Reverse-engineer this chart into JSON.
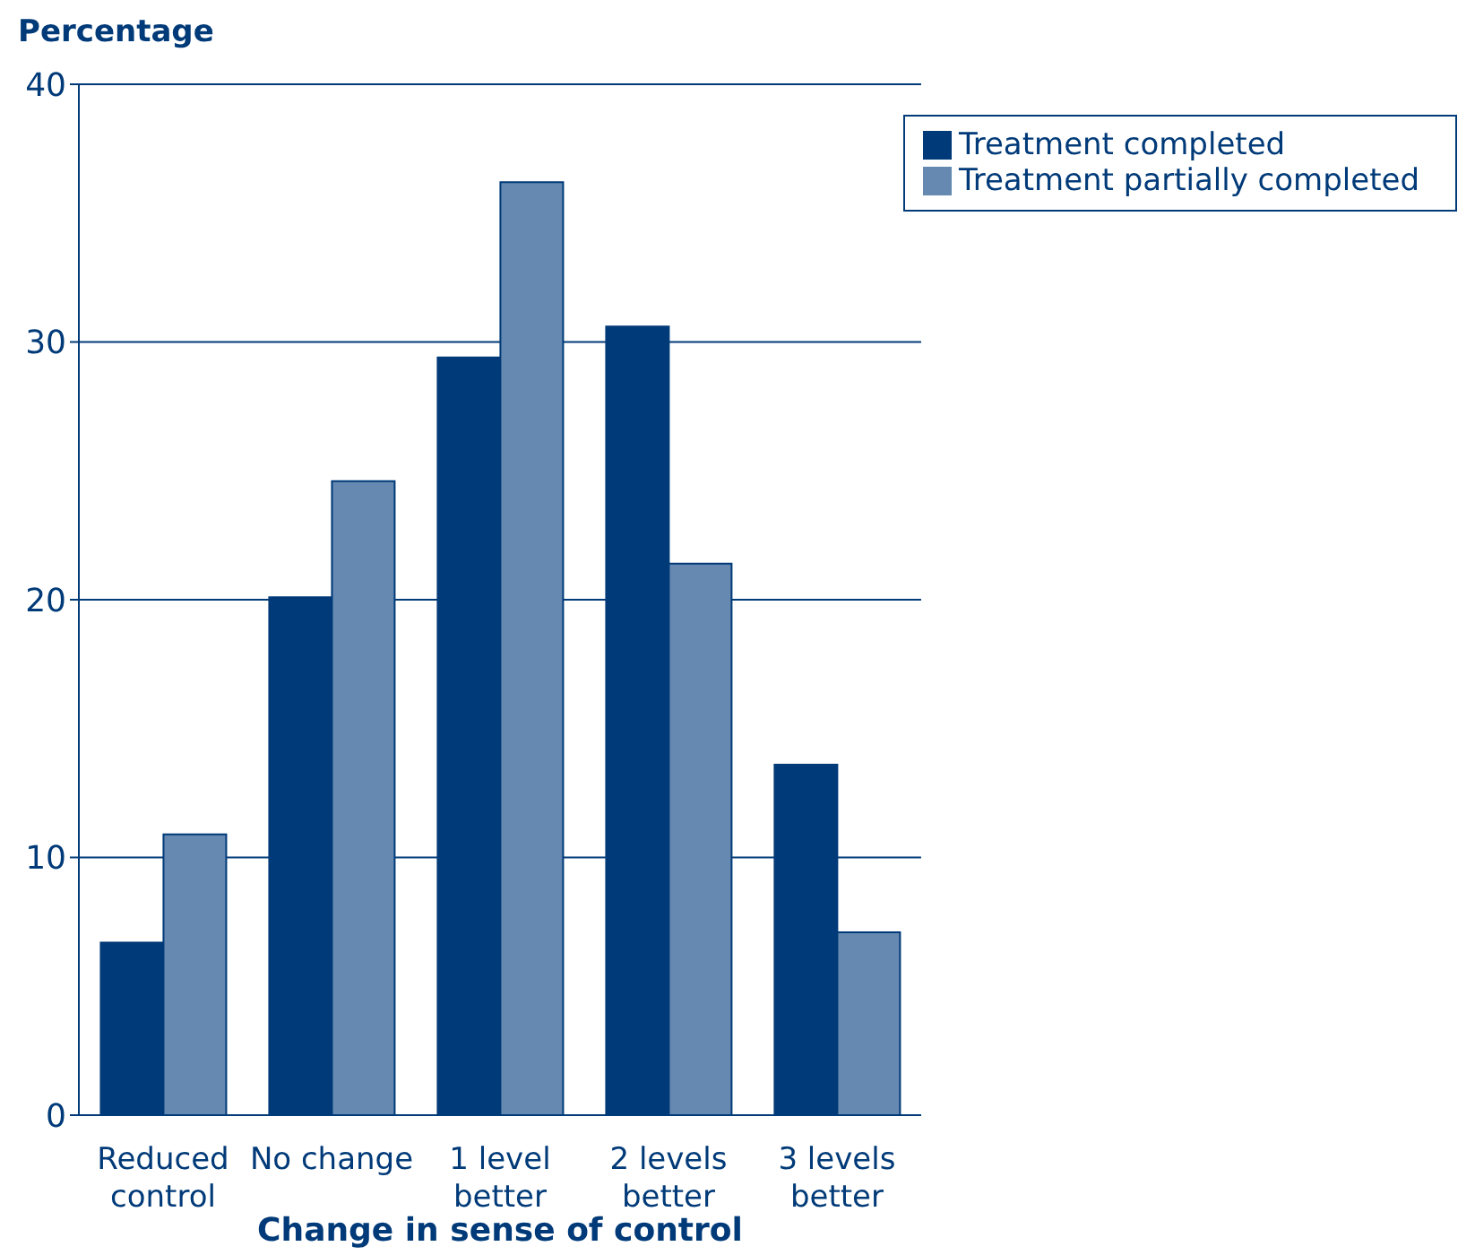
{
  "chart_data": {
    "type": "bar",
    "xlabel": "Change in sense of control",
    "ylabel": "Percentage",
    "categories": [
      "Reduced\ncontrol",
      "No change",
      "1 level\nbetter",
      "2 levels\nbetter",
      "3 levels\nbetter"
    ],
    "series": [
      {
        "name": "Treatment completed",
        "color": "#003a78",
        "values": [
          6.7,
          20.1,
          29.4,
          30.6,
          13.6
        ]
      },
      {
        "name": "Treatment partially completed",
        "color": "#6589b0",
        "values": [
          10.9,
          24.6,
          36.2,
          21.4,
          7.1
        ]
      }
    ],
    "ylim": [
      0,
      40
    ],
    "yticks": [
      0,
      10,
      20,
      30,
      40
    ],
    "grid": "y",
    "legend": "top right"
  }
}
